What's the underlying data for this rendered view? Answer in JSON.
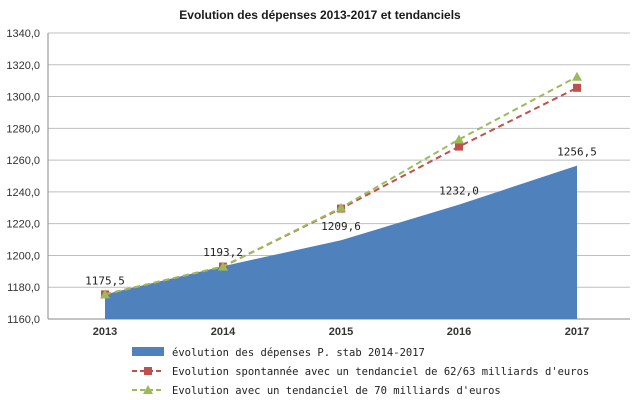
{
  "chart_data": {
    "type": "area",
    "title": "Evolution des dépenses 2013-2017 et tendanciels",
    "xlabel": "",
    "ylabel": "",
    "categories": [
      "2013",
      "2014",
      "2015",
      "2016",
      "2017"
    ],
    "ylim": [
      1160,
      1340
    ],
    "yticks": [
      "1160,0",
      "1180,0",
      "1200,0",
      "1220,0",
      "1240,0",
      "1260,0",
      "1280,0",
      "1300,0",
      "1320,0",
      "1340,0"
    ],
    "grid": true,
    "legend_position": "bottom",
    "series": [
      {
        "name": "évolution des dépenses P. stab 2014-2017",
        "kind": "area",
        "color": "#4F81BD",
        "values": [
          1175.5,
          1193.2,
          1209.6,
          1232.0,
          1256.5
        ],
        "labels": [
          "1175,5",
          "1193,2",
          "1209,6",
          "1232,0",
          "1256,5"
        ]
      },
      {
        "name": "Evolution spontannée avec un tendanciel de 62/63 milliards d'euros",
        "kind": "line",
        "marker": "square",
        "dash": true,
        "color": "#C0504D",
        "values": [
          1175.5,
          1193.0,
          1229.5,
          1268.5,
          1305.5
        ]
      },
      {
        "name": "Evolution avec un tendanciel de 70 milliards d'euros",
        "kind": "line",
        "marker": "triangle",
        "dash": true,
        "color": "#9BBB59",
        "values": [
          1175.5,
          1193.0,
          1230.0,
          1273.0,
          1312.5
        ]
      }
    ]
  }
}
